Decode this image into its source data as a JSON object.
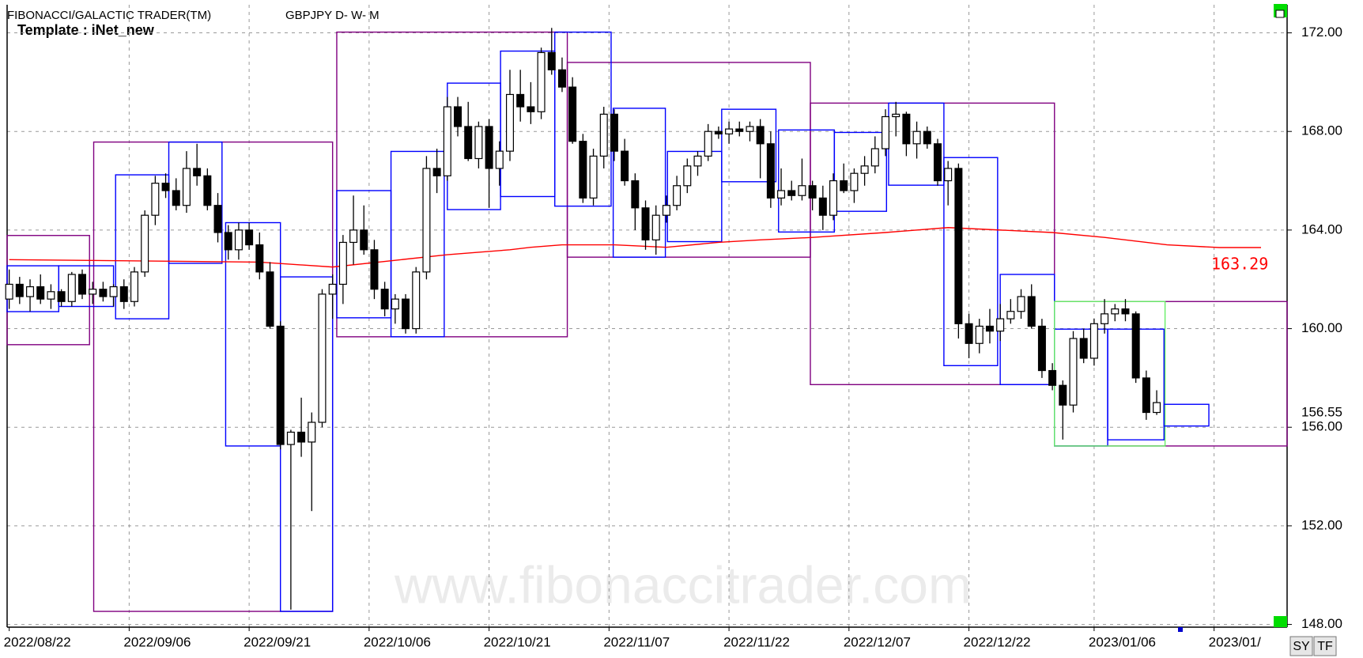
{
  "chart_data": {
    "type": "candlestick",
    "title": "FIBONACCI/GALACTIC TRADER(TM)",
    "symbol": "GBPJPY D- W- M",
    "template": "Template : iNet_new",
    "watermark": "www.fibonaccitrader.com",
    "buttons": [
      "SY",
      "TF"
    ],
    "grid": true,
    "xlim": [
      -0.2,
      122.5
    ],
    "xticks": [
      {
        "value": 0,
        "label": "2022/08/22"
      },
      {
        "value": 11.5,
        "label": "2022/09/06"
      },
      {
        "value": 23,
        "label": "2022/09/21"
      },
      {
        "value": 34.5,
        "label": "2022/10/06"
      },
      {
        "value": 46,
        "label": "2022/10/21"
      },
      {
        "value": 57.5,
        "label": "2022/11/07"
      },
      {
        "value": 69,
        "label": "2022/11/22"
      },
      {
        "value": 80.5,
        "label": "2022/12/07"
      },
      {
        "value": 92,
        "label": "2022/12/22"
      },
      {
        "value": 104,
        "label": "2023/01/06"
      },
      {
        "value": 115.5,
        "label": "2023/01/"
      }
    ],
    "ylim": [
      147.89,
      173.14
    ],
    "yticks": [
      {
        "value": 148,
        "label": "148.00"
      },
      {
        "value": 152,
        "label": "152.00"
      },
      {
        "value": 156,
        "label": "156.00"
      },
      {
        "value": 160,
        "label": "160.00"
      },
      {
        "value": 164,
        "label": "164.00"
      },
      {
        "value": 168,
        "label": "168.00"
      },
      {
        "value": 172,
        "label": "172.00"
      }
    ],
    "up_color": "#ffffff",
    "down_color": "#000000",
    "candles": {
      "open": [
        161.2,
        161.8,
        161.3,
        161.7,
        161.2,
        161.5,
        161.1,
        162.2,
        161.4,
        161.6,
        161.3,
        161.7,
        161.1,
        162.3,
        164.6,
        165.9,
        165.6,
        165.0,
        166.5,
        166.2,
        165.0,
        163.9,
        163.2,
        164.0,
        163.4,
        162.3,
        160.1,
        155.3,
        155.8,
        155.4,
        156.2,
        161.4,
        161.8,
        163.5,
        164.0,
        163.2,
        161.6,
        160.8,
        161.2,
        160.0,
        162.3,
        166.5,
        166.2,
        169.0,
        168.2,
        166.9,
        168.2,
        166.5,
        167.2,
        169.5,
        169.0,
        168.8,
        171.2,
        170.5,
        169.8,
        167.6,
        165.3,
        167.0,
        168.7,
        167.2,
        166.0,
        164.9,
        163.6,
        164.6,
        165.0,
        165.8,
        166.6,
        167.0,
        168.0,
        167.9,
        168.1,
        168.0,
        168.2,
        167.5,
        165.3,
        165.6,
        165.4,
        165.8,
        165.3,
        164.6,
        166.0,
        165.6,
        166.3,
        166.6,
        167.3,
        168.6,
        168.7,
        167.5,
        168.0,
        167.5,
        166.0,
        166.5,
        160.2,
        159.4,
        160.1,
        159.9,
        160.4,
        160.7,
        161.3,
        160.1,
        158.3,
        157.7,
        156.9,
        159.6,
        158.8,
        160.2,
        160.6,
        160.8,
        160.6,
        158.0,
        156.6
      ],
      "high": [
        162.4,
        162.1,
        162.0,
        162.2,
        161.8,
        161.6,
        162.3,
        162.4,
        161.9,
        161.9,
        161.8,
        162.0,
        162.5,
        164.8,
        166.2,
        166.3,
        166.1,
        167.2,
        167.5,
        166.5,
        165.5,
        164.2,
        164.3,
        164.3,
        163.9,
        162.7,
        160.3,
        155.9,
        157.2,
        156.6,
        161.6,
        162.2,
        163.8,
        165.4,
        165.0,
        163.6,
        161.9,
        161.4,
        161.4,
        162.5,
        167.0,
        167.3,
        169.4,
        169.4,
        169.2,
        168.4,
        168.5,
        167.6,
        170.5,
        170.5,
        170.0,
        171.4,
        172.2,
        171.0,
        170.2,
        167.9,
        167.3,
        169.0,
        168.9,
        167.7,
        166.3,
        165.2,
        165.0,
        165.4,
        166.2,
        166.9,
        167.2,
        168.3,
        168.2,
        168.4,
        168.4,
        168.4,
        168.5,
        168.0,
        166.5,
        166.0,
        166.9,
        166.0,
        165.8,
        166.3,
        166.7,
        166.5,
        167.0,
        167.8,
        168.9,
        169.2,
        168.8,
        168.4,
        168.2,
        167.7,
        166.8,
        166.7,
        160.6,
        160.4,
        160.8,
        161.0,
        161.2,
        161.6,
        161.8,
        160.4,
        158.6,
        157.9,
        159.9,
        160.0,
        160.4,
        161.2,
        161.0,
        161.2,
        160.7,
        158.3,
        157.5
      ],
      "low": [
        160.8,
        161.0,
        160.7,
        161.0,
        160.8,
        160.9,
        160.9,
        161.2,
        161.0,
        161.1,
        160.9,
        160.8,
        160.9,
        162.1,
        164.2,
        165.3,
        164.8,
        164.7,
        165.8,
        164.8,
        163.5,
        162.8,
        162.8,
        163.2,
        162.0,
        160.0,
        155.1,
        148.6,
        154.8,
        152.6,
        156.0,
        160.4,
        161.0,
        162.6,
        163.0,
        161.2,
        160.5,
        160.2,
        159.8,
        159.8,
        162.0,
        165.5,
        166.0,
        167.8,
        166.8,
        166.5,
        164.9,
        165.8,
        166.8,
        168.4,
        168.3,
        168.5,
        170.3,
        169.6,
        167.5,
        165.1,
        165.0,
        166.5,
        166.8,
        165.8,
        164.0,
        163.2,
        163.0,
        164.3,
        164.8,
        165.5,
        166.2,
        166.8,
        167.7,
        167.5,
        167.8,
        167.6,
        166.1,
        164.9,
        165.0,
        165.2,
        165.2,
        164.8,
        164.0,
        164.4,
        165.5,
        165.1,
        165.8,
        166.3,
        167.0,
        167.8,
        167.0,
        166.9,
        167.3,
        165.8,
        165.0,
        159.6,
        158.8,
        159.0,
        159.4,
        159.5,
        160.2,
        160.4,
        160.0,
        158.0,
        157.5,
        155.5,
        156.6,
        158.6,
        158.5,
        159.8,
        160.3,
        160.3,
        157.8,
        156.3,
        156.5
      ],
      "close": [
        161.8,
        161.3,
        161.7,
        161.2,
        161.5,
        161.1,
        162.2,
        161.4,
        161.6,
        161.3,
        161.7,
        161.1,
        162.3,
        164.6,
        165.9,
        165.6,
        165.0,
        166.5,
        166.2,
        165.0,
        163.9,
        163.2,
        164.0,
        163.4,
        162.3,
        160.1,
        155.3,
        155.8,
        155.4,
        156.2,
        161.4,
        161.8,
        163.5,
        164.0,
        163.2,
        161.6,
        160.8,
        161.2,
        160.0,
        162.3,
        166.5,
        166.2,
        169.0,
        168.2,
        166.9,
        168.2,
        166.5,
        167.2,
        169.5,
        169.0,
        168.8,
        171.2,
        170.5,
        169.8,
        167.6,
        165.3,
        167.0,
        168.7,
        167.2,
        166.0,
        164.9,
        163.6,
        164.6,
        165.0,
        165.8,
        166.6,
        167.0,
        168.0,
        167.9,
        168.1,
        168.0,
        168.2,
        167.5,
        165.3,
        165.6,
        165.4,
        165.8,
        165.3,
        164.6,
        166.0,
        165.6,
        166.3,
        166.6,
        167.3,
        168.6,
        168.7,
        167.5,
        168.0,
        167.5,
        166.0,
        166.5,
        160.2,
        159.4,
        160.1,
        159.9,
        160.4,
        160.7,
        161.3,
        160.1,
        158.3,
        157.7,
        156.9,
        159.6,
        158.8,
        160.2,
        160.6,
        160.8,
        160.6,
        158.0,
        156.6,
        157.0
      ]
    },
    "ma": {
      "color": "#ff0000",
      "label": "163.29",
      "x": [
        0,
        24,
        31,
        42,
        45,
        48,
        50,
        53,
        58,
        63,
        68,
        72,
        77,
        84,
        90,
        95,
        100,
        105,
        111,
        116,
        120
      ],
      "values": [
        162.8,
        162.7,
        162.5,
        163.0,
        163.1,
        163.2,
        163.3,
        163.4,
        163.4,
        163.3,
        163.5,
        163.6,
        163.7,
        163.9,
        164.1,
        164.0,
        163.9,
        163.7,
        163.4,
        163.29,
        163.29
      ]
    },
    "last_price_label": "156.55",
    "boxes": [
      {
        "color": "#800080",
        "x": [
          -0.6,
          7.7
        ],
        "y": [
          163.78,
          159.35
        ]
      },
      {
        "color": "#800080",
        "x": [
          8.1,
          31
        ],
        "y": [
          167.57,
          148.53
        ]
      },
      {
        "color": "#800080",
        "x": [
          31.4,
          53.5
        ],
        "y": [
          172.03,
          159.67
        ]
      },
      {
        "color": "#800080",
        "x": [
          53.5,
          76.8
        ],
        "y": [
          170.8,
          162.9
        ]
      },
      {
        "color": "#800080",
        "x": [
          76.8,
          100.2
        ],
        "y": [
          169.15,
          157.73
        ]
      },
      {
        "color": "#800080",
        "x": [
          100.2,
          122.5
        ],
        "y": [
          161.1,
          155.24
        ]
      },
      {
        "color": "#0000ff",
        "x": [
          -0.4,
          4.75
        ],
        "y": [
          162.55,
          160.69
        ]
      },
      {
        "color": "#0000ff",
        "x": [
          4.75,
          10
        ],
        "y": [
          162.55,
          160.9
        ]
      },
      {
        "color": "#0000ff",
        "x": [
          10.2,
          15.3
        ],
        "y": [
          166.24,
          160.4
        ]
      },
      {
        "color": "#0000ff",
        "x": [
          15.3,
          20.4
        ],
        "y": [
          167.57,
          162.65
        ]
      },
      {
        "color": "#0000ff",
        "x": [
          20.75,
          26
        ],
        "y": [
          164.3,
          155.24
        ]
      },
      {
        "color": "#0000ff",
        "x": [
          26,
          31
        ],
        "y": [
          162.1,
          148.53
        ]
      },
      {
        "color": "#0000ff",
        "x": [
          31.4,
          36.6
        ],
        "y": [
          165.6,
          160.44
        ]
      },
      {
        "color": "#0000ff",
        "x": [
          36.6,
          41.7
        ],
        "y": [
          167.19,
          159.67
        ]
      },
      {
        "color": "#0000ff",
        "x": [
          42,
          47.1
        ],
        "y": [
          169.96,
          164.83
        ]
      },
      {
        "color": "#0000ff",
        "x": [
          47.1,
          52.3
        ],
        "y": [
          171.26,
          165.36
        ]
      },
      {
        "color": "#0000ff",
        "x": [
          52.3,
          57.7
        ],
        "y": [
          172.03,
          164.97
        ]
      },
      {
        "color": "#0000ff",
        "x": [
          57.9,
          62.9
        ],
        "y": [
          168.94,
          162.9
        ]
      },
      {
        "color": "#0000ff",
        "x": [
          63.1,
          68.3
        ],
        "y": [
          167.19,
          163.53
        ]
      },
      {
        "color": "#0000ff",
        "x": [
          68.3,
          73.5
        ],
        "y": [
          168.9,
          165.96
        ]
      },
      {
        "color": "#0000ff",
        "x": [
          73.75,
          79.1
        ],
        "y": [
          168.06,
          163.92
        ]
      },
      {
        "color": "#0000ff",
        "x": [
          79.1,
          84.1
        ],
        "y": [
          167.96,
          164.76
        ]
      },
      {
        "color": "#0000ff",
        "x": [
          84.3,
          89.6
        ],
        "y": [
          169.15,
          165.82
        ]
      },
      {
        "color": "#0000ff",
        "x": [
          89.6,
          94.75
        ],
        "y": [
          166.94,
          158.5
        ]
      },
      {
        "color": "#0000ff",
        "x": [
          95,
          100.2
        ],
        "y": [
          162.2,
          157.73
        ]
      },
      {
        "color": "#0000ff",
        "x": [
          100.2,
          105.3
        ],
        "y": [
          159.98,
          155.24
        ]
      },
      {
        "color": "#66ee66",
        "x": [
          100.2,
          110.8
        ],
        "y": [
          161.1,
          155.24
        ]
      },
      {
        "color": "#0000ff",
        "x": [
          105.3,
          110.7
        ],
        "y": [
          159.98,
          155.49
        ]
      },
      {
        "color": "#0000ff",
        "x": [
          110.7,
          115
        ],
        "y": [
          156.93,
          156.05
        ]
      }
    ]
  }
}
